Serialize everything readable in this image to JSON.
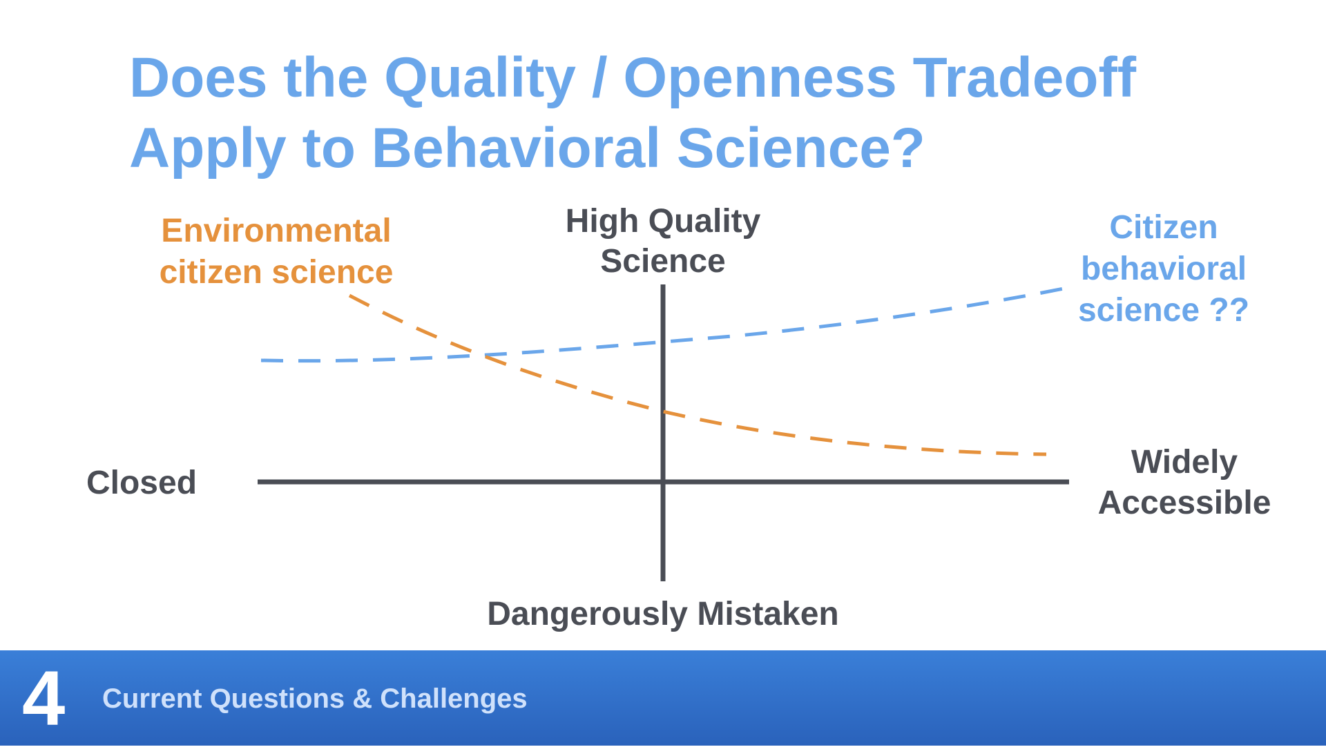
{
  "slide": {
    "title_lines": [
      "Does the Quality / Openness Tradeoff",
      "Apply to Behavioral Science?"
    ]
  },
  "diagram": {
    "axes": {
      "y_top_lines": [
        "High Quality",
        "Science"
      ],
      "y_bottom": "Dangerously Mistaken",
      "x_left": "Closed",
      "x_right_lines": [
        "Widely",
        "Accessible"
      ]
    },
    "curves": {
      "environmental": {
        "label_lines": [
          "Environmental",
          "citizen science"
        ],
        "color": "#e5913c",
        "trend": "decreasing"
      },
      "behavioral": {
        "label_lines": [
          "Citizen",
          "behavioral",
          "science ??"
        ],
        "color": "#6aa6ea",
        "trend": "increasing"
      }
    },
    "axis_color": "#4a4d55"
  },
  "footer": {
    "section_number": "4",
    "section_title": "Current Questions & Challenges",
    "color": "#2f6fcc"
  }
}
